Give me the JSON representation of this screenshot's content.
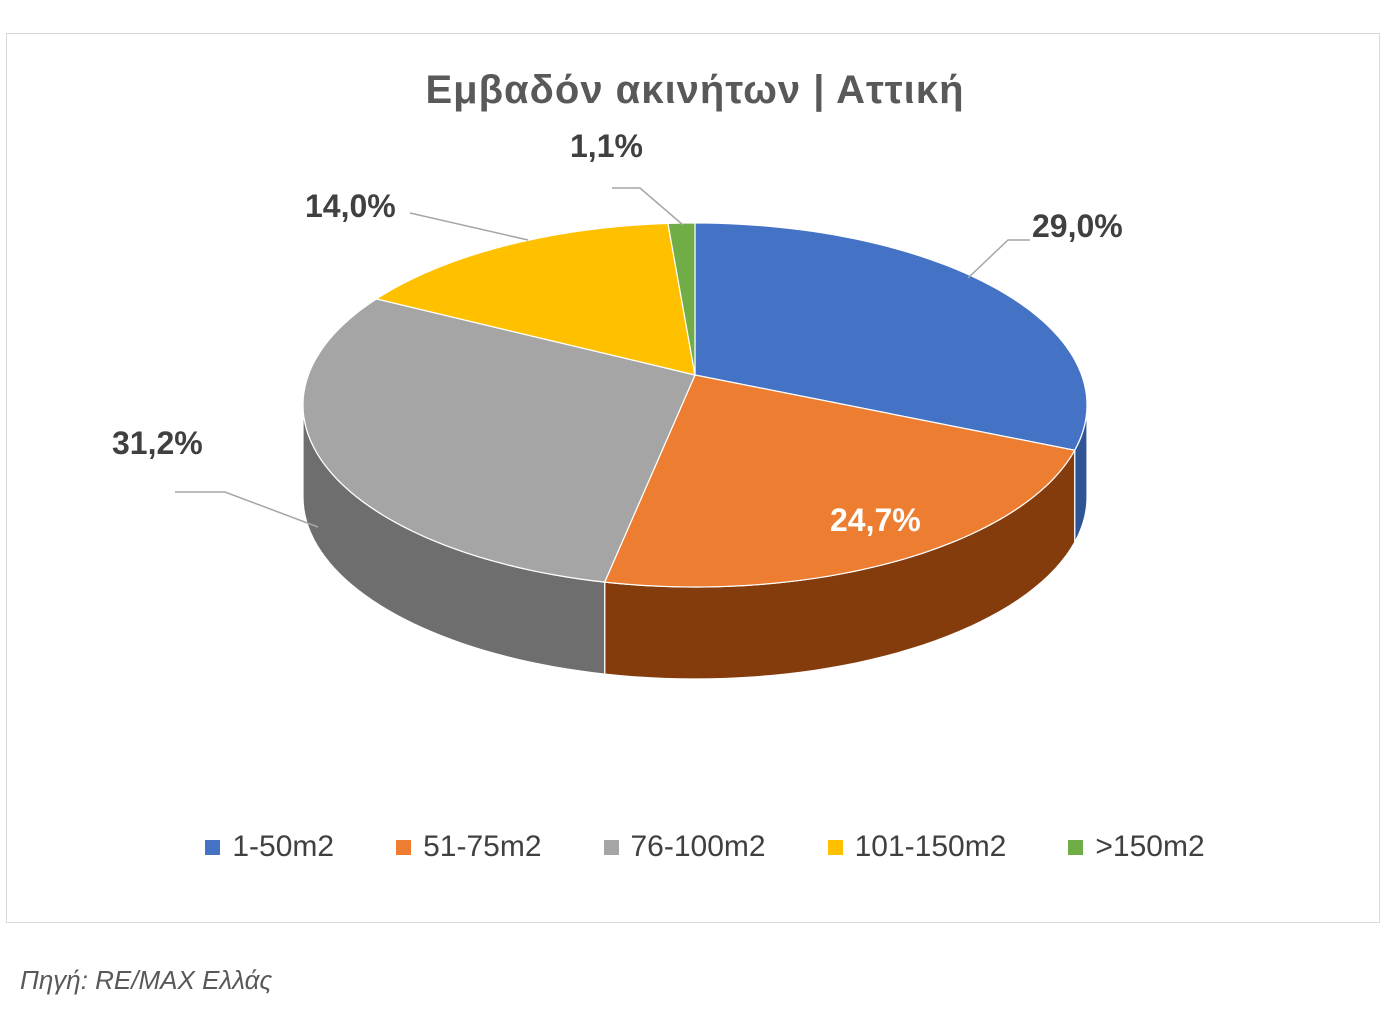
{
  "chart_data": {
    "type": "pie",
    "title": "Εμβαδόν ακινήτων | Αττική",
    "categories": [
      "1-50m2",
      "51-75m2",
      "76-100m2",
      "101-150m2",
      ">150m2"
    ],
    "values": [
      29.0,
      24.7,
      31.2,
      14.0,
      1.1
    ],
    "data_labels": [
      "29,0%",
      "24,7%",
      "31,2%",
      "14,0%",
      "1,1%"
    ],
    "colors": [
      "#4472C4",
      "#ED7D31",
      "#A5A5A5",
      "#FFC000",
      "#70AD47"
    ],
    "side_colors": [
      "#2F5597",
      "#843C0C",
      "#6E6E6E",
      "#BF9000",
      "#507E32"
    ],
    "legend_position": "bottom",
    "style": "3d"
  },
  "source": "Πηγή: RE/MAX Ελλάς"
}
